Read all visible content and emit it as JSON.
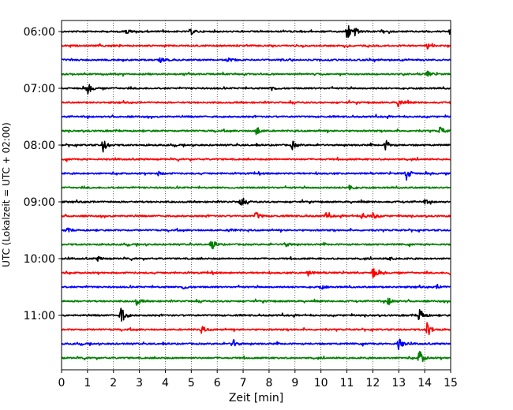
{
  "chart_data": {
    "type": "line",
    "title": "",
    "xlabel": "Zeit  [min]",
    "ylabel": "UTC (Lokalzeit = UTC + 02:00)",
    "xlim": [
      0,
      15
    ],
    "x_ticks": [
      "0",
      "1",
      "2",
      "3",
      "4",
      "5",
      "6",
      "7",
      "8",
      "9",
      "10",
      "11",
      "12",
      "13",
      "14",
      "15"
    ],
    "y_tick_labels": [
      "06:00",
      "07:00",
      "08:00",
      "09:00",
      "10:00",
      "11:00"
    ],
    "grid": "vertical dotted",
    "line_minutes": 15,
    "row_colors": [
      "#000000",
      "#ff0000",
      "#0000ff",
      "#008000"
    ],
    "series": [
      {
        "start": "06:00",
        "color": "#000000",
        "events": [
          [
            2.5,
            0.4
          ],
          [
            5.0,
            0.4
          ],
          [
            11.0,
            1.5
          ],
          [
            11.3,
            0.5
          ],
          [
            15.0,
            0.8
          ]
        ]
      },
      {
        "start": "06:15",
        "color": "#ff0000",
        "events": [
          [
            14.1,
            0.4
          ]
        ]
      },
      {
        "start": "06:30",
        "color": "#0000ff",
        "events": [
          [
            3.8,
            0.3
          ],
          [
            6.4,
            0.3
          ]
        ]
      },
      {
        "start": "06:45",
        "color": "#008000",
        "events": [
          [
            14.1,
            0.4
          ]
        ]
      },
      {
        "start": "07:00",
        "color": "#000000",
        "events": [
          [
            1.0,
            0.9
          ],
          [
            8.1,
            0.3
          ]
        ]
      },
      {
        "start": "07:15",
        "color": "#ff0000",
        "events": [
          [
            13.0,
            0.7
          ]
        ]
      },
      {
        "start": "07:30",
        "color": "#0000ff",
        "events": []
      },
      {
        "start": "07:45",
        "color": "#008000",
        "events": [
          [
            7.5,
            0.7
          ],
          [
            14.6,
            0.6
          ]
        ]
      },
      {
        "start": "08:00",
        "color": "#000000",
        "events": [
          [
            1.6,
            0.9
          ],
          [
            8.9,
            0.6
          ],
          [
            12.5,
            0.7
          ]
        ]
      },
      {
        "start": "08:15",
        "color": "#ff0000",
        "events": []
      },
      {
        "start": "08:30",
        "color": "#0000ff",
        "events": [
          [
            3.7,
            0.3
          ],
          [
            13.3,
            1.0
          ]
        ]
      },
      {
        "start": "08:45",
        "color": "#008000",
        "events": [
          [
            11.1,
            0.5
          ]
        ]
      },
      {
        "start": "09:00",
        "color": "#000000",
        "events": [
          [
            6.9,
            0.7
          ],
          [
            14.0,
            0.3
          ]
        ]
      },
      {
        "start": "09:15",
        "color": "#ff0000",
        "events": [
          [
            7.5,
            0.6
          ],
          [
            10.2,
            0.4
          ],
          [
            11.6,
            0.5
          ],
          [
            12.0,
            0.4
          ]
        ]
      },
      {
        "start": "09:30",
        "color": "#0000ff",
        "events": [
          [
            0.2,
            0.3
          ],
          [
            6.5,
            0.3
          ]
        ]
      },
      {
        "start": "09:45",
        "color": "#008000",
        "events": [
          [
            5.8,
            0.7
          ],
          [
            8.6,
            0.4
          ]
        ]
      },
      {
        "start": "10:00",
        "color": "#000000",
        "events": [
          [
            1.4,
            0.3
          ],
          [
            12.6,
            0.3
          ]
        ]
      },
      {
        "start": "10:15",
        "color": "#ff0000",
        "events": [
          [
            9.5,
            0.4
          ],
          [
            12.0,
            0.9
          ],
          [
            15.0,
            0.8
          ]
        ]
      },
      {
        "start": "10:30",
        "color": "#0000ff",
        "events": [
          [
            4.7,
            0.3
          ],
          [
            10.0,
            0.3
          ],
          [
            14.5,
            0.3
          ]
        ]
      },
      {
        "start": "10:45",
        "color": "#008000",
        "events": [
          [
            2.9,
            0.5
          ],
          [
            12.6,
            0.6
          ]
        ]
      },
      {
        "start": "11:00",
        "color": "#000000",
        "events": [
          [
            2.3,
            1.3
          ],
          [
            13.8,
            1.1
          ]
        ]
      },
      {
        "start": "11:15",
        "color": "#ff0000",
        "events": [
          [
            5.4,
            0.5
          ],
          [
            14.1,
            1.1
          ]
        ]
      },
      {
        "start": "11:30",
        "color": "#0000ff",
        "events": [
          [
            6.6,
            0.7
          ],
          [
            13.0,
            0.9
          ]
        ]
      },
      {
        "start": "11:45",
        "color": "#008000",
        "events": [
          [
            13.8,
            1.2
          ]
        ]
      }
    ]
  }
}
